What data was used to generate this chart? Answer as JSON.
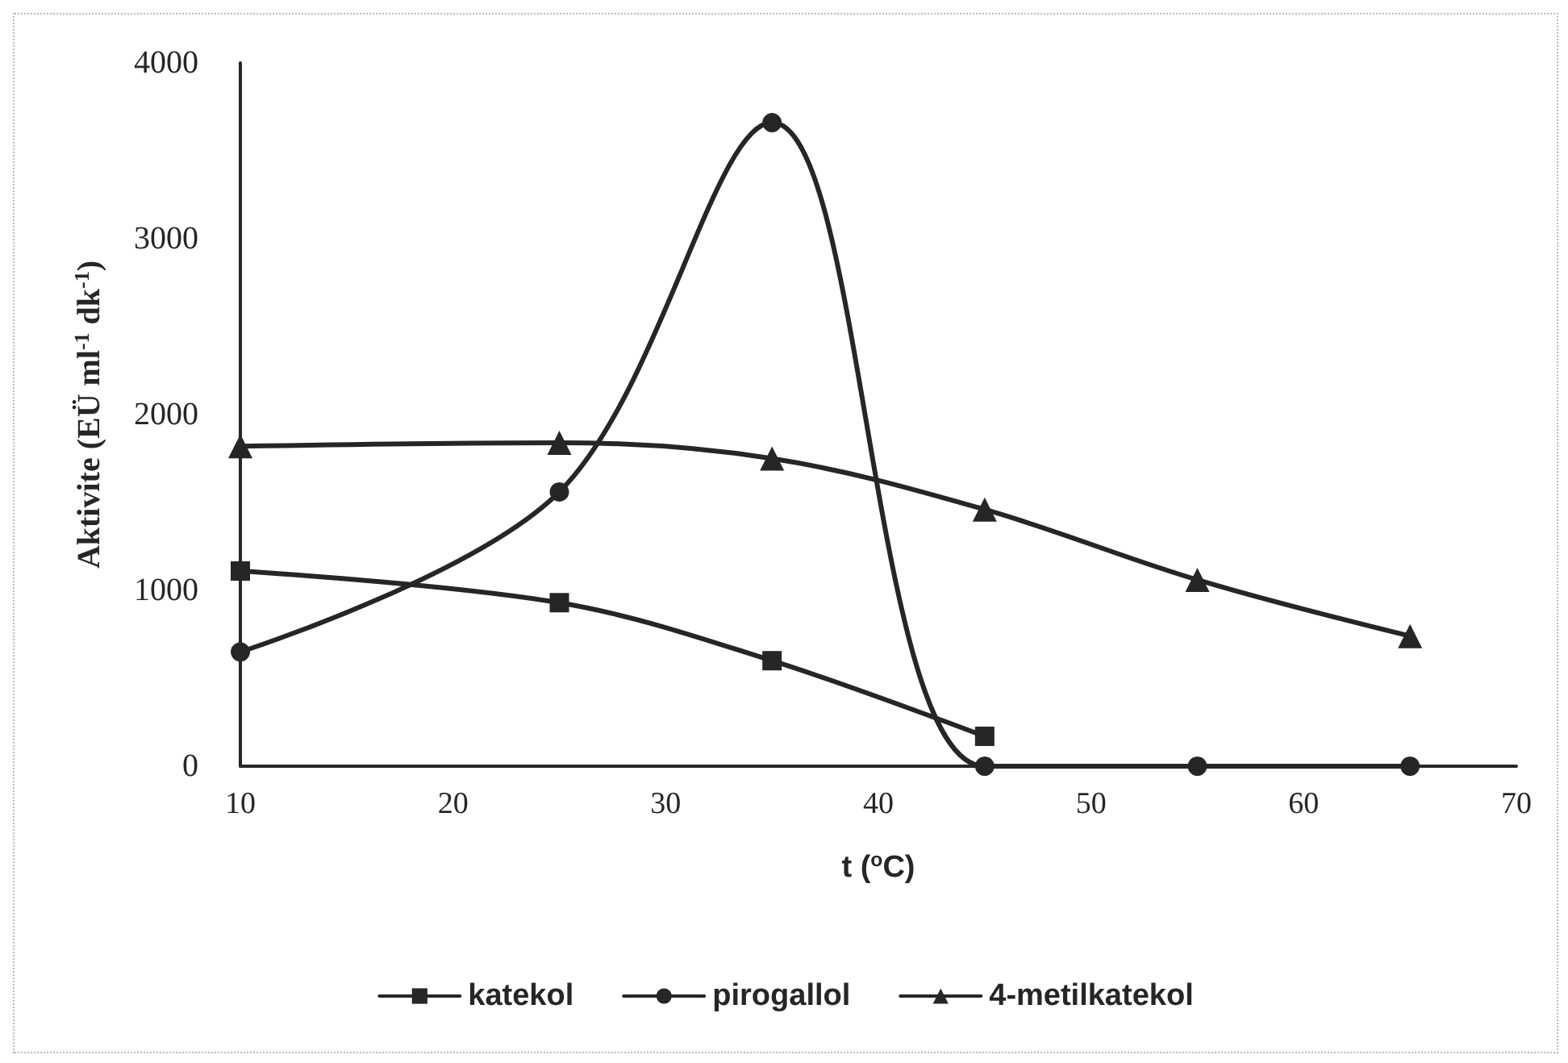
{
  "chart_data": {
    "type": "line",
    "xlabel": "t ($^{o}$C)",
    "ylabel": "Aktivite (EÜ ml$^{-1}$ dk$^{-1}$)",
    "x": [
      10,
      25,
      35,
      45,
      55,
      65
    ],
    "series": [
      {
        "name": "katekol",
        "color": "#262626",
        "marker": "square",
        "values": [
          1110,
          930,
          600,
          170,
          null,
          null
        ]
      },
      {
        "name": "pirogallol",
        "color": "#262626",
        "marker": "circle",
        "values": [
          650,
          1560,
          3660,
          0,
          0,
          0
        ]
      },
      {
        "name": "4-metilkatekol",
        "color": "#262626",
        "marker": "triangle",
        "values": [
          1820,
          1840,
          1750,
          1460,
          1060,
          740
        ]
      }
    ],
    "xlim": [
      10,
      70
    ],
    "xticks": [
      10,
      20,
      30,
      40,
      50,
      60,
      70
    ],
    "ylim": [
      0,
      4000
    ],
    "yticks": [
      0,
      1000,
      2000,
      3000,
      4000
    ],
    "grid": false,
    "legend": "bottom",
    "line_style": "solid"
  }
}
